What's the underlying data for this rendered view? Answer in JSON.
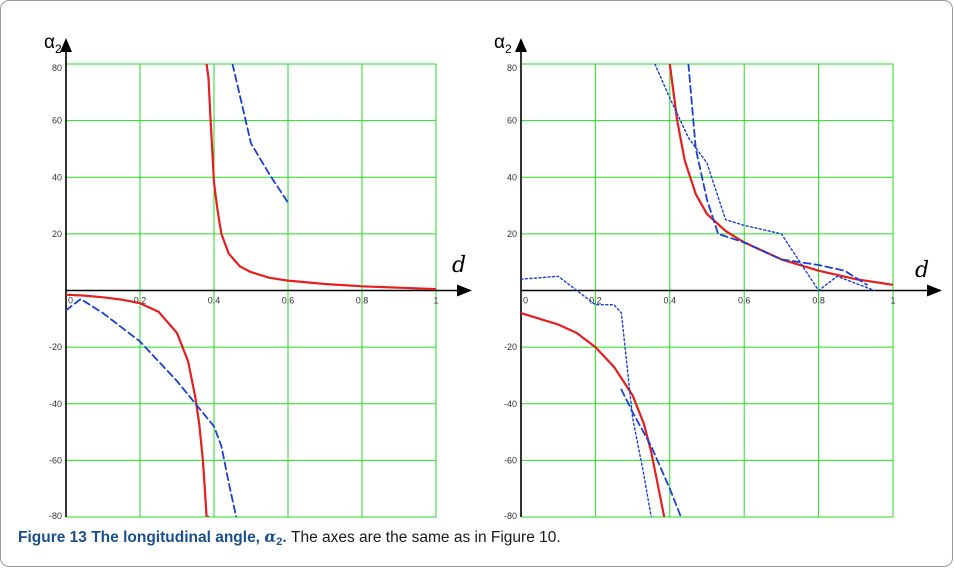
{
  "chart_data": [
    {
      "type": "line",
      "panel": "left",
      "xlabel": "d",
      "ylabel": "α",
      "ylabel_sub": "2",
      "xlim": [
        0,
        1
      ],
      "ylim": [
        -80,
        80
      ],
      "x_ticks": [
        "0",
        "0.2",
        "0.4",
        "0.6",
        "0.8",
        "1"
      ],
      "y_ticks": [
        "80",
        "60",
        "40",
        "20",
        "-20",
        "-40",
        "-60",
        "-80"
      ],
      "grid": true,
      "grid_color": "#22dd22",
      "series": [
        {
          "style": "solid",
          "color": "#e51e1e",
          "x": [
            0.0,
            0.05,
            0.1,
            0.15,
            0.2,
            0.25,
            0.3,
            0.33,
            0.35,
            0.36,
            0.37,
            0.375,
            0.38,
            0.385
          ],
          "y": [
            -1.5,
            -1.8,
            -2.4,
            -3.2,
            -4.5,
            -7.5,
            -15,
            -25,
            -38,
            -47,
            -60,
            -70,
            -80,
            -80
          ]
        },
        {
          "style": "solid",
          "color": "#e51e1e",
          "x": [
            0.38,
            0.385,
            0.39,
            0.395,
            0.4,
            0.41,
            0.42,
            0.44,
            0.47,
            0.5,
            0.55,
            0.6,
            0.7,
            0.8,
            0.9,
            1.0
          ],
          "y": [
            80,
            75,
            62,
            50,
            38,
            28,
            20,
            13,
            8.5,
            6.5,
            4.5,
            3.5,
            2.3,
            1.5,
            1.0,
            0.5
          ]
        },
        {
          "style": "dashed",
          "color": "#1a3fd6",
          "x": [
            0.0,
            0.04,
            0.1,
            0.2,
            0.3,
            0.4,
            0.42,
            0.44,
            0.46
          ],
          "y": [
            -7,
            -3,
            -8,
            -18,
            -32,
            -48,
            -55,
            -68,
            -80
          ]
        },
        {
          "style": "dashed",
          "color": "#1a3fd6",
          "x": [
            0.45,
            0.5,
            0.55,
            0.6
          ],
          "y": [
            80,
            52,
            41,
            31
          ]
        }
      ]
    },
    {
      "type": "line",
      "panel": "right",
      "xlabel": "d",
      "ylabel": "α",
      "ylabel_sub": "2",
      "xlim": [
        0,
        1
      ],
      "ylim": [
        -80,
        80
      ],
      "x_ticks": [
        "0",
        "0.2",
        "0.4",
        "0.6",
        "0.8",
        "1"
      ],
      "y_ticks": [
        "80",
        "60",
        "40",
        "20",
        "-20",
        "-40",
        "-60",
        "-80"
      ],
      "grid": true,
      "grid_color": "#22dd22",
      "series": [
        {
          "style": "solid",
          "color": "#e51e1e",
          "x": [
            0.0,
            0.05,
            0.1,
            0.15,
            0.2,
            0.25,
            0.3,
            0.33,
            0.35,
            0.37,
            0.385
          ],
          "y": [
            -8,
            -10,
            -12,
            -15,
            -20,
            -27,
            -37,
            -47,
            -57,
            -70,
            -80
          ]
        },
        {
          "style": "solid",
          "color": "#e51e1e",
          "x": [
            0.4,
            0.41,
            0.42,
            0.44,
            0.47,
            0.5,
            0.55,
            0.6,
            0.7,
            0.8,
            0.9,
            1.0
          ],
          "y": [
            80,
            70,
            60,
            46,
            34,
            27,
            21,
            17,
            11,
            7,
            4,
            2
          ]
        },
        {
          "style": "dashed",
          "color": "#1a3fd6",
          "x": [
            0.27,
            0.3,
            0.35,
            0.4,
            0.43
          ],
          "y": [
            -35,
            -43,
            -55,
            -70,
            -80
          ]
        },
        {
          "style": "dashed",
          "color": "#1a3fd6",
          "x": [
            0.45,
            0.47,
            0.5,
            0.53,
            0.6,
            0.7,
            0.8,
            0.87,
            0.93
          ],
          "y": [
            80,
            50,
            32,
            20,
            17,
            11,
            9,
            7,
            2
          ]
        },
        {
          "style": "dotted",
          "color": "#1a3fd6",
          "x": [
            0.0,
            0.1,
            0.2,
            0.25,
            0.27,
            0.3,
            0.33,
            0.35
          ],
          "y": [
            4,
            5,
            -5,
            -5,
            -8,
            -45,
            -65,
            -80
          ]
        },
        {
          "style": "dotted",
          "color": "#1a3fd6",
          "x": [
            0.36,
            0.4,
            0.45,
            0.5,
            0.55,
            0.6,
            0.7,
            0.8,
            0.85,
            0.95
          ],
          "y": [
            80,
            68,
            54,
            45,
            25,
            23,
            20,
            0,
            5,
            0
          ]
        }
      ]
    }
  ],
  "caption": {
    "label": "Figure 13 The longitudinal angle,",
    "alpha": "α",
    "sub": "2",
    "dot": ".",
    "text": "The axes are the same as in Figure 10."
  }
}
